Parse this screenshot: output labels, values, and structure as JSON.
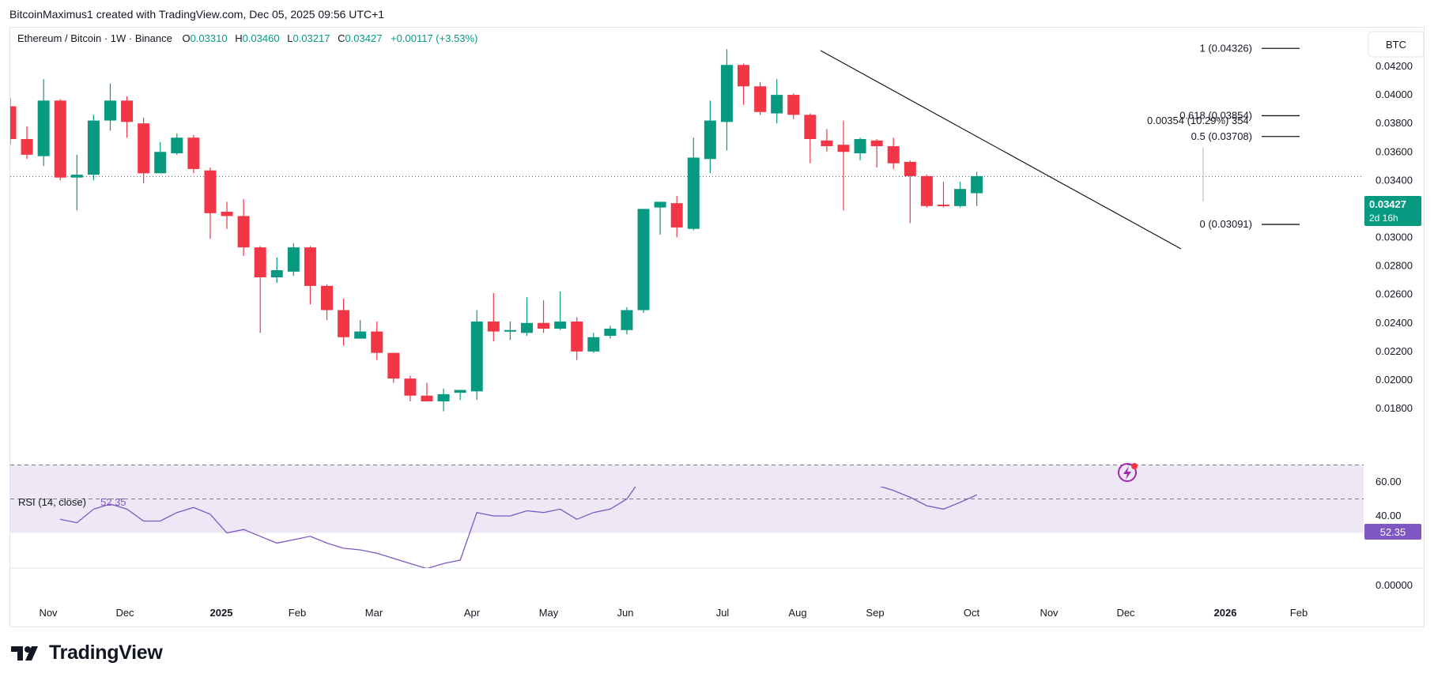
{
  "attribution": "BitcoinMaximus1 created with TradingView.com, Dec 05, 2025 09:56 UTC+1",
  "legend": {
    "symbol": "Ethereum / Bitcoin · 1W · Binance",
    "o_label": "O",
    "o_value": "0.03310",
    "h_label": "H",
    "h_value": "0.03460",
    "l_label": "L",
    "l_value": "0.03217",
    "c_label": "C",
    "c_value": "0.03427",
    "change": "+0.00117 (+3.53%)"
  },
  "currency_button": "BTC",
  "price_badge": {
    "price": "0.03427",
    "countdown": "2d 16h"
  },
  "rsi": {
    "label": "RSI (14, close)",
    "value": "52.35"
  },
  "footer": {
    "logo_text": "TradingView"
  },
  "fib_labels": [
    {
      "text": "1 (0.04326)",
      "price": 0.04326
    },
    {
      "text": "0.618 (0.03854)",
      "price": 0.03854
    },
    {
      "text": "0.5 (0.03708)",
      "price": 0.03708
    },
    {
      "text": "0 (0.03091)",
      "price": 0.03091
    }
  ],
  "measure_label": "0.00354 (10.29%) 354",
  "colors": {
    "up": "#089981",
    "down": "#f23645",
    "rsi_line": "#7e57c2",
    "rsi_band": "#ede7f6",
    "text": "#131722",
    "axis_text": "#131722",
    "border": "#e0e3eb",
    "badge_green": "#089981",
    "badge_purple": "#7e57c2"
  },
  "chart_data": {
    "type": "candlestick",
    "title": "Ethereum / Bitcoin · 1W · Binance",
    "y_unit": "BTC",
    "ylim": [
      0.0175,
      0.0436
    ],
    "y_ticks": [
      "0.04200",
      "0.04000",
      "0.03800",
      "0.03600",
      "0.03400",
      "0.03200",
      "0.03000",
      "0.02800",
      "0.02600",
      "0.02400",
      "0.02200",
      "0.02000",
      "0.01800"
    ],
    "x_ticks": [
      "Nov",
      "Dec",
      "2025",
      "Feb",
      "Mar",
      "Apr",
      "May",
      "Jun",
      "Jul",
      "Aug",
      "Sep",
      "Oct",
      "Nov",
      "Dec",
      "2026",
      "Feb"
    ],
    "x_ticks_bold": [
      "2025",
      "2026"
    ],
    "candles": [
      {
        "o": 0.0392,
        "h": 0.0398,
        "l": 0.0365,
        "c": 0.0369
      },
      {
        "o": 0.0369,
        "h": 0.0378,
        "l": 0.0355,
        "c": 0.0358
      },
      {
        "o": 0.0357,
        "h": 0.0411,
        "l": 0.035,
        "c": 0.0396
      },
      {
        "o": 0.0396,
        "h": 0.0397,
        "l": 0.034,
        "c": 0.0342
      },
      {
        "o": 0.0342,
        "h": 0.0358,
        "l": 0.0319,
        "c": 0.0344
      },
      {
        "o": 0.0344,
        "h": 0.0386,
        "l": 0.034,
        "c": 0.0382
      },
      {
        "o": 0.0382,
        "h": 0.0408,
        "l": 0.0375,
        "c": 0.0396
      },
      {
        "o": 0.0396,
        "h": 0.0399,
        "l": 0.037,
        "c": 0.0381
      },
      {
        "o": 0.038,
        "h": 0.0384,
        "l": 0.0338,
        "c": 0.0345
      },
      {
        "o": 0.0345,
        "h": 0.0367,
        "l": 0.0345,
        "c": 0.036
      },
      {
        "o": 0.0359,
        "h": 0.0373,
        "l": 0.0358,
        "c": 0.037
      },
      {
        "o": 0.037,
        "h": 0.0372,
        "l": 0.0345,
        "c": 0.0348
      },
      {
        "o": 0.0347,
        "h": 0.0349,
        "l": 0.0299,
        "c": 0.0317
      },
      {
        "o": 0.0318,
        "h": 0.0325,
        "l": 0.0306,
        "c": 0.0315
      },
      {
        "o": 0.0315,
        "h": 0.0327,
        "l": 0.0287,
        "c": 0.0293
      },
      {
        "o": 0.0293,
        "h": 0.0294,
        "l": 0.0233,
        "c": 0.0272
      },
      {
        "o": 0.0272,
        "h": 0.0286,
        "l": 0.0268,
        "c": 0.0277
      },
      {
        "o": 0.0276,
        "h": 0.0296,
        "l": 0.0273,
        "c": 0.0293
      },
      {
        "o": 0.0293,
        "h": 0.0294,
        "l": 0.0253,
        "c": 0.0266
      },
      {
        "o": 0.0266,
        "h": 0.0267,
        "l": 0.0242,
        "c": 0.0249
      },
      {
        "o": 0.0249,
        "h": 0.0257,
        "l": 0.0224,
        "c": 0.023
      },
      {
        "o": 0.0229,
        "h": 0.0242,
        "l": 0.0229,
        "c": 0.0234
      },
      {
        "o": 0.0234,
        "h": 0.0241,
        "l": 0.0214,
        "c": 0.0219
      },
      {
        "o": 0.0219,
        "h": 0.0219,
        "l": 0.0198,
        "c": 0.0201
      },
      {
        "o": 0.0201,
        "h": 0.0203,
        "l": 0.0185,
        "c": 0.0189
      },
      {
        "o": 0.0189,
        "h": 0.0198,
        "l": 0.0185,
        "c": 0.0185
      },
      {
        "o": 0.0185,
        "h": 0.0194,
        "l": 0.0178,
        "c": 0.019
      },
      {
        "o": 0.0191,
        "h": 0.0192,
        "l": 0.0186,
        "c": 0.0193
      },
      {
        "o": 0.0192,
        "h": 0.0249,
        "l": 0.0186,
        "c": 0.0241
      },
      {
        "o": 0.0241,
        "h": 0.0261,
        "l": 0.0227,
        "c": 0.0234
      },
      {
        "o": 0.0234,
        "h": 0.0241,
        "l": 0.0228,
        "c": 0.0235
      },
      {
        "o": 0.0233,
        "h": 0.0258,
        "l": 0.0231,
        "c": 0.024
      },
      {
        "o": 0.024,
        "h": 0.0256,
        "l": 0.0233,
        "c": 0.0236
      },
      {
        "o": 0.0236,
        "h": 0.0262,
        "l": 0.0235,
        "c": 0.0241
      },
      {
        "o": 0.0241,
        "h": 0.0244,
        "l": 0.0214,
        "c": 0.022
      },
      {
        "o": 0.022,
        "h": 0.0233,
        "l": 0.0219,
        "c": 0.023
      },
      {
        "o": 0.0231,
        "h": 0.0238,
        "l": 0.0229,
        "c": 0.0236
      },
      {
        "o": 0.0235,
        "h": 0.0251,
        "l": 0.0232,
        "c": 0.0249
      },
      {
        "o": 0.0249,
        "h": 0.032,
        "l": 0.0247,
        "c": 0.032
      },
      {
        "o": 0.0321,
        "h": 0.0325,
        "l": 0.0302,
        "c": 0.0325
      },
      {
        "o": 0.0324,
        "h": 0.0329,
        "l": 0.03,
        "c": 0.0307
      },
      {
        "o": 0.0306,
        "h": 0.037,
        "l": 0.0305,
        "c": 0.0356
      },
      {
        "o": 0.0355,
        "h": 0.0396,
        "l": 0.0345,
        "c": 0.0382
      },
      {
        "o": 0.0381,
        "h": 0.0432,
        "l": 0.0361,
        "c": 0.0421
      },
      {
        "o": 0.0421,
        "h": 0.0422,
        "l": 0.0393,
        "c": 0.0406
      },
      {
        "o": 0.0406,
        "h": 0.0409,
        "l": 0.0386,
        "c": 0.0388
      },
      {
        "o": 0.0387,
        "h": 0.0411,
        "l": 0.038,
        "c": 0.04
      },
      {
        "o": 0.04,
        "h": 0.0401,
        "l": 0.0383,
        "c": 0.0386
      },
      {
        "o": 0.0386,
        "h": 0.0387,
        "l": 0.0352,
        "c": 0.0369
      },
      {
        "o": 0.0368,
        "h": 0.0376,
        "l": 0.036,
        "c": 0.0364
      },
      {
        "o": 0.0365,
        "h": 0.0382,
        "l": 0.0319,
        "c": 0.036
      },
      {
        "o": 0.0359,
        "h": 0.037,
        "l": 0.0354,
        "c": 0.0369
      },
      {
        "o": 0.0368,
        "h": 0.0369,
        "l": 0.0349,
        "c": 0.0364
      },
      {
        "o": 0.0364,
        "h": 0.037,
        "l": 0.0348,
        "c": 0.0352
      },
      {
        "o": 0.0353,
        "h": 0.0354,
        "l": 0.031,
        "c": 0.0343
      },
      {
        "o": 0.0343,
        "h": 0.0344,
        "l": 0.0321,
        "c": 0.0322
      },
      {
        "o": 0.0323,
        "h": 0.0339,
        "l": 0.0321,
        "c": 0.0322
      },
      {
        "o": 0.0322,
        "h": 0.0339,
        "l": 0.0321,
        "c": 0.0334
      },
      {
        "o": 0.0331,
        "h": 0.0346,
        "l": 0.0322,
        "c": 0.0343
      }
    ],
    "rsi_ticks": [
      "60.00",
      "40.00",
      "0.00000"
    ],
    "rsi_values": [
      null,
      null,
      null,
      38,
      36,
      44,
      47,
      44,
      37,
      37,
      42,
      45,
      41,
      30,
      32,
      28,
      24,
      26,
      28,
      24,
      21,
      20,
      18,
      15,
      12,
      9,
      12,
      14,
      42,
      40,
      40,
      43,
      42,
      44,
      38,
      42,
      44,
      50,
      64,
      65,
      58,
      67,
      70,
      73,
      70,
      66,
      67,
      64,
      60,
      59,
      58,
      59,
      58,
      55,
      51,
      46,
      44,
      48,
      52.35
    ]
  }
}
